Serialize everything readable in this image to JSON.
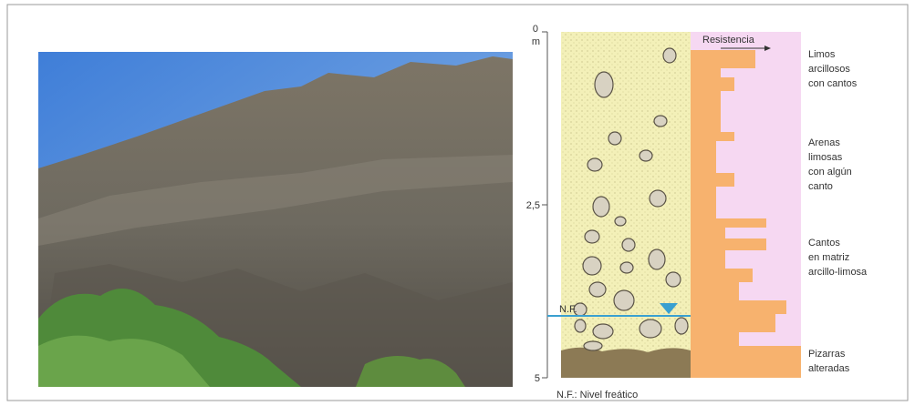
{
  "diagram": {
    "depth_labels": {
      "top": "0",
      "unit": "m",
      "middle": "2,5",
      "bottom": "5"
    },
    "resistance_label": "Resistencia",
    "water_level_label": "N.F.",
    "layers": [
      {
        "lines": [
          "Limos",
          "arcillosos",
          "con cantos"
        ]
      },
      {
        "lines": [
          "Arenas",
          "limosas",
          "con algún",
          "canto"
        ]
      },
      {
        "lines": [
          "Cantos",
          "en matriz",
          "arcillo-limosa"
        ]
      },
      {
        "lines": [
          "Pizarras",
          "alteradas"
        ]
      }
    ],
    "legend_note": "N.F.: Nivel freático"
  }
}
